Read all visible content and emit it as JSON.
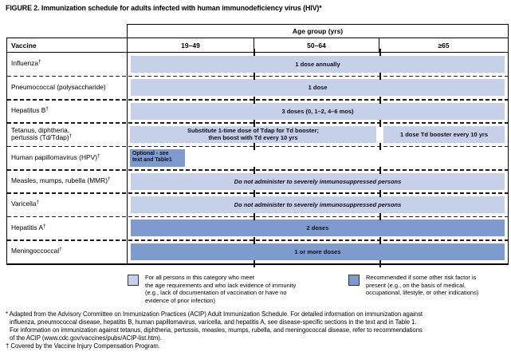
{
  "title": "FIGURE 2. Immunization schedule for adults infected with human immunodeficiency virus (HIV)*",
  "table": {
    "age_group_header": "Age group (yrs)",
    "vaccine_header": "Vaccine",
    "age_columns": [
      "19–49",
      "50–64",
      "≥65"
    ],
    "rows": [
      {
        "vaccine": "Influenza",
        "sup": "†",
        "bar_all": "1 dose annually"
      },
      {
        "vaccine": "Pneumococcal (polysaccharide)",
        "sup": "",
        "bar_all": "1 dose"
      },
      {
        "vaccine": "Hepatitus B",
        "sup": "†",
        "bar_all": "3 doses (0, 1–2, 4–6 mos)"
      },
      {
        "vaccine_line1": "Tetanus, diphtheria,",
        "vaccine_line2": "pertussis (Td/Tdap)",
        "sup": "†",
        "bar_19_64_line1": "Substitute 1-time dose of Tdap for Td booster;",
        "bar_19_64_line2": "then boost with Td every 10 yrs",
        "bar_65": "1 dose Td booster every 10 yrs"
      },
      {
        "vaccine": "Human papillomavirus (HPV)",
        "sup": "†",
        "bar_19_49_line1": "Optional - see",
        "bar_19_49_line2": "text and Table1"
      },
      {
        "vaccine": "Measles, mumps, rubella (MMR)",
        "sup": "†",
        "bar_all": "Do not administer to severely immunosuppressed persons"
      },
      {
        "vaccine": "Varicella",
        "sup": "†",
        "bar_all": "Do not administer to severely immunosuppressed persons"
      },
      {
        "vaccine": "Hepatitis A",
        "sup": "†",
        "bar_all": "2 doses"
      },
      {
        "vaccine": "Meningoccoccal",
        "sup": "†",
        "bar_all": "1 or more doses"
      }
    ]
  },
  "legend": {
    "for_all": {
      "color": "#c7d0e9",
      "lines": [
        "For all persons in this category who meet",
        "the age requirements and who lack evidence of immunity",
        "(e.g., lack of documentation of vaccination or have no",
        "evidence of prior infection)"
      ]
    },
    "risk_factor": {
      "color": "#7e9bd0",
      "lines": [
        "Recommended if some other risk factor is",
        "present (e.g., on the basis of medical,",
        "occupational, lifestyle, or other indications)"
      ]
    }
  },
  "footnotes": {
    "asterisk_lines": [
      "* Adapted from the Advisory Committee on Immunization Practices (ACIP) Adult Immunization Schedule. For detailed information on immunization against",
      "influenza, pneumococcal disease, hepatitis B, human papillomavirus, varicella, and hepatitis A, see disease-specific sections in the text and in Table 1.",
      "For information on immunization against tetanus, diphtheria, pertussis, measles, mumps, rubella, and meningococcal disease, refer to recommendations",
      "of the ACIP (www.cdc.gov/vaccines/pubs/ACIP-list.htm)."
    ],
    "dagger_line": "† Covered by the Vaccine Injury Compensation Program."
  },
  "colors": {
    "for_all_fill": "#c7d0e9",
    "risk_factor_fill": "#7e9bd0"
  }
}
